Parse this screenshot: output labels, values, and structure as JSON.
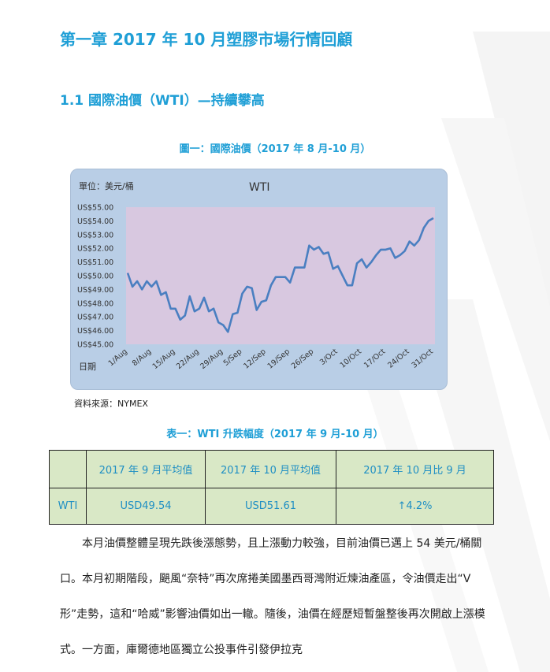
{
  "chapter_title": "第一章  2017 年 10 月塑膠市場行情回顧",
  "section_title": "1.1 國際油價（WTI）—持續攀高",
  "figure": {
    "caption": "圖一：國際油價（2017 年 8 月-10 月）",
    "source": "資料來源：NYMEX"
  },
  "chart_data": {
    "type": "line",
    "title": "WTI",
    "unit_label": "單位：美元/桶",
    "xlabel": "日期",
    "ylabel": "",
    "ylim": [
      45,
      55
    ],
    "yticks": [
      "US$55.00",
      "US$54.00",
      "US$53.00",
      "US$52.00",
      "US$51.00",
      "US$50.00",
      "US$49.00",
      "US$48.00",
      "US$47.00",
      "US$46.00",
      "US$45.00"
    ],
    "xticks": [
      "1/Aug",
      "8/Aug",
      "15/Aug",
      "22/Aug",
      "29/Aug",
      "5/Sep",
      "12/Sep",
      "19/Sep",
      "26/Sep",
      "3/Oct",
      "10/Oct",
      "17/Oct",
      "24/Oct",
      "31/Oct"
    ],
    "grid": false,
    "series": [
      {
        "name": "",
        "color": "#4a7fc1",
        "x": [
          "1/Aug",
          "2/Aug",
          "3/Aug",
          "4/Aug",
          "7/Aug",
          "8/Aug",
          "9/Aug",
          "10/Aug",
          "11/Aug",
          "14/Aug",
          "15/Aug",
          "16/Aug",
          "17/Aug",
          "18/Aug",
          "21/Aug",
          "22/Aug",
          "23/Aug",
          "24/Aug",
          "25/Aug",
          "28/Aug",
          "29/Aug",
          "30/Aug",
          "31/Aug",
          "1/Sep",
          "5/Sep",
          "6/Sep",
          "7/Sep",
          "8/Sep",
          "11/Sep",
          "12/Sep",
          "13/Sep",
          "14/Sep",
          "15/Sep",
          "18/Sep",
          "19/Sep",
          "20/Sep",
          "21/Sep",
          "22/Sep",
          "25/Sep",
          "26/Sep",
          "27/Sep",
          "28/Sep",
          "29/Sep",
          "2/Oct",
          "3/Oct",
          "4/Oct",
          "5/Oct",
          "6/Oct",
          "9/Oct",
          "10/Oct",
          "11/Oct",
          "12/Oct",
          "13/Oct",
          "16/Oct",
          "17/Oct",
          "18/Oct",
          "19/Oct",
          "20/Oct",
          "23/Oct",
          "24/Oct",
          "25/Oct",
          "26/Oct",
          "27/Oct",
          "30/Oct",
          "31/Oct"
        ],
        "values": [
          50.2,
          49.2,
          49.6,
          49.0,
          49.6,
          49.2,
          49.6,
          48.6,
          48.8,
          47.6,
          47.6,
          46.8,
          47.1,
          48.5,
          47.4,
          47.6,
          48.4,
          47.4,
          47.6,
          46.6,
          46.4,
          45.9,
          47.2,
          47.3,
          48.7,
          49.2,
          49.1,
          47.5,
          48.1,
          48.2,
          49.3,
          49.9,
          49.9,
          49.9,
          49.5,
          50.6,
          50.6,
          50.6,
          52.2,
          51.9,
          52.1,
          51.6,
          51.7,
          50.5,
          50.7,
          50.0,
          49.3,
          49.3,
          50.9,
          51.2,
          50.6,
          51.0,
          51.5,
          51.9,
          51.9,
          52.0,
          51.3,
          51.5,
          51.8,
          52.5,
          52.2,
          52.6,
          53.5,
          54.0,
          54.2
        ]
      }
    ]
  },
  "table": {
    "caption": "表一：WTI 升跌幅度（2017 年 9 月-10 月）",
    "headers": [
      "",
      "2017 年 9 月平均值",
      "2017 年 10 月平均值",
      "2017 年 10 月比 9 月"
    ],
    "rows": [
      [
        "WTI",
        "USD49.54",
        "USD51.61",
        "↑4.2%"
      ]
    ]
  },
  "paragraph": "本月油價整體呈現先跌後漲態勢，且上漲動力較強，目前油價已邁上 54 美元/桶關口。本月初期階段，颶風“奈特”再次席捲美國墨西哥灣附近煉油產區，令油價走出“V 形”走勢，這和“哈威”影響油價如出一轍。隨後，油價在經歷短暫盤整後再次開啟上漲模式。一方面，庫爾德地區獨立公投事件引發伊拉克",
  "colors": {
    "heading": "#1f9fd6",
    "chart_frame": "#b9cee6",
    "plot_area": "#d8c8e0",
    "table_fill": "#d9e8c6",
    "line": "#4a7fc1"
  }
}
